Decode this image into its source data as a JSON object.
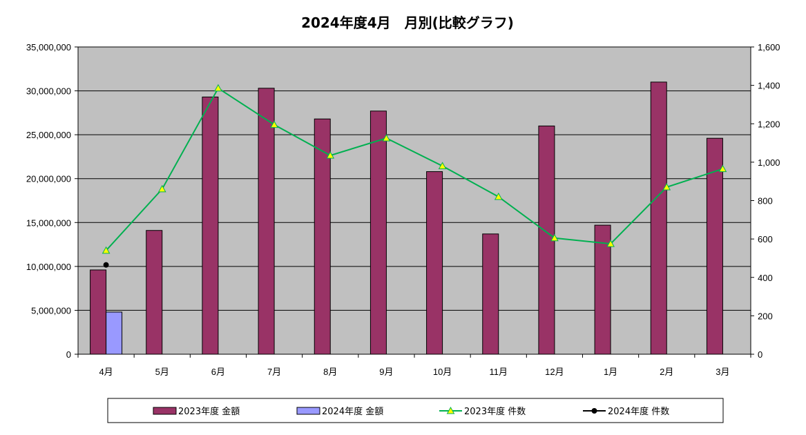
{
  "chart_data": {
    "type": "bar",
    "title": "2024年度4月　月別(比較グラフ)",
    "categories": [
      "4月",
      "5月",
      "6月",
      "7月",
      "8月",
      "9月",
      "10月",
      "11月",
      "12月",
      "1月",
      "2月",
      "3月"
    ],
    "y_left": {
      "range": [
        0,
        35000000
      ],
      "ticks": [
        "0",
        "5,000,000",
        "10,000,000",
        "15,000,000",
        "20,000,000",
        "25,000,000",
        "30,000,000",
        "35,000,000"
      ],
      "tick_values": [
        0,
        5000000,
        10000000,
        15000000,
        20000000,
        25000000,
        30000000,
        35000000
      ]
    },
    "y_right": {
      "range": [
        0,
        1600
      ],
      "ticks": [
        "0",
        "200",
        "400",
        "600",
        "800",
        "1,000",
        "1,200",
        "1,400",
        "1,600"
      ],
      "tick_values": [
        0,
        200,
        400,
        600,
        800,
        1000,
        1200,
        1400,
        1600
      ]
    },
    "series": [
      {
        "name": "2023年度 金額",
        "type": "bar",
        "axis": "left",
        "color": "#993366",
        "values": [
          9600000,
          14100000,
          29300000,
          30300000,
          26800000,
          27700000,
          20800000,
          13700000,
          26000000,
          14700000,
          31000000,
          24600000
        ]
      },
      {
        "name": "2024年度 金額",
        "type": "bar",
        "axis": "left",
        "color": "#9999ff",
        "values": [
          4800000,
          null,
          null,
          null,
          null,
          null,
          null,
          null,
          null,
          null,
          null,
          null
        ]
      },
      {
        "name": "2023年度 件数",
        "type": "line",
        "axis": "right",
        "color": "#00b050",
        "marker": "triangle",
        "marker_color": "#ffff00",
        "values": [
          540,
          860,
          1385,
          1195,
          1035,
          1125,
          980,
          820,
          605,
          575,
          870,
          965
        ]
      },
      {
        "name": "2024年度 件数",
        "type": "line",
        "axis": "right",
        "color": "#000000",
        "marker": "circle",
        "marker_color": "#000000",
        "values": [
          465,
          null,
          null,
          null,
          null,
          null,
          null,
          null,
          null,
          null,
          null,
          null
        ]
      }
    ],
    "plot_background": "#c0c0c0",
    "grid": "horizontal",
    "legend_position": "bottom"
  }
}
